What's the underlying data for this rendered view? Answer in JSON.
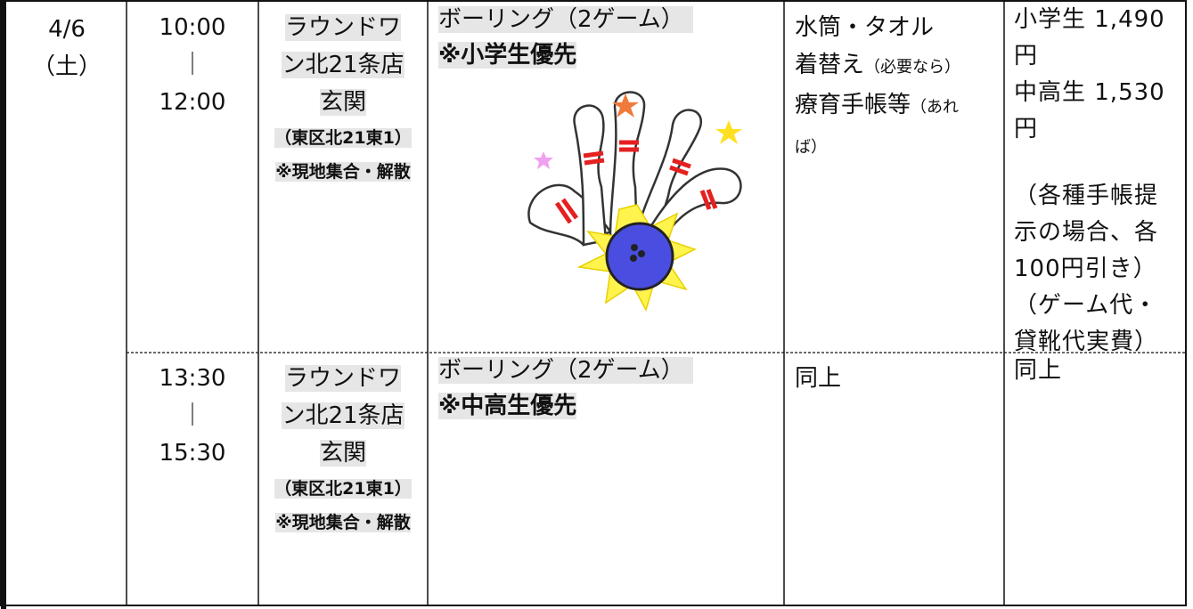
{
  "table": {
    "date": {
      "day": "4/6",
      "weekday": "（土）"
    },
    "sessions": [
      {
        "time": {
          "start": "10:00",
          "sep": "｜",
          "end": "12:00"
        },
        "place": {
          "name": "ラウンドワン北21条店",
          "spot": "玄関",
          "address": "（東区北21東1）",
          "note": "※現地集合・解散"
        },
        "activity": {
          "name": "ボーリング（2ゲーム）",
          "priority": "※小学生優先"
        },
        "belongings": [
          {
            "text": "水筒・タオル"
          },
          {
            "text": "着替え",
            "note": "（必要なら）"
          },
          {
            "text": "療育手帳等",
            "note": "（あれば）"
          }
        ],
        "fee": [
          "小学生 1,490円",
          "中高生 1,530円",
          "（各種手帳提示の場合、各100円引き）",
          "（ゲーム代・貸靴代実費）"
        ]
      },
      {
        "time": {
          "start": "13:30",
          "sep": "｜",
          "end": "15:30"
        },
        "place": {
          "name": "ラウンドワン北21条店",
          "spot": "玄関",
          "address": "（東区北21東1）",
          "note": "※現地集合・解散"
        },
        "activity": {
          "name": "ボーリング（2ゲーム）",
          "priority": "※中高生優先"
        },
        "belongings": [
          {
            "text": "同上"
          }
        ],
        "fee": [
          "同上"
        ]
      }
    ]
  }
}
